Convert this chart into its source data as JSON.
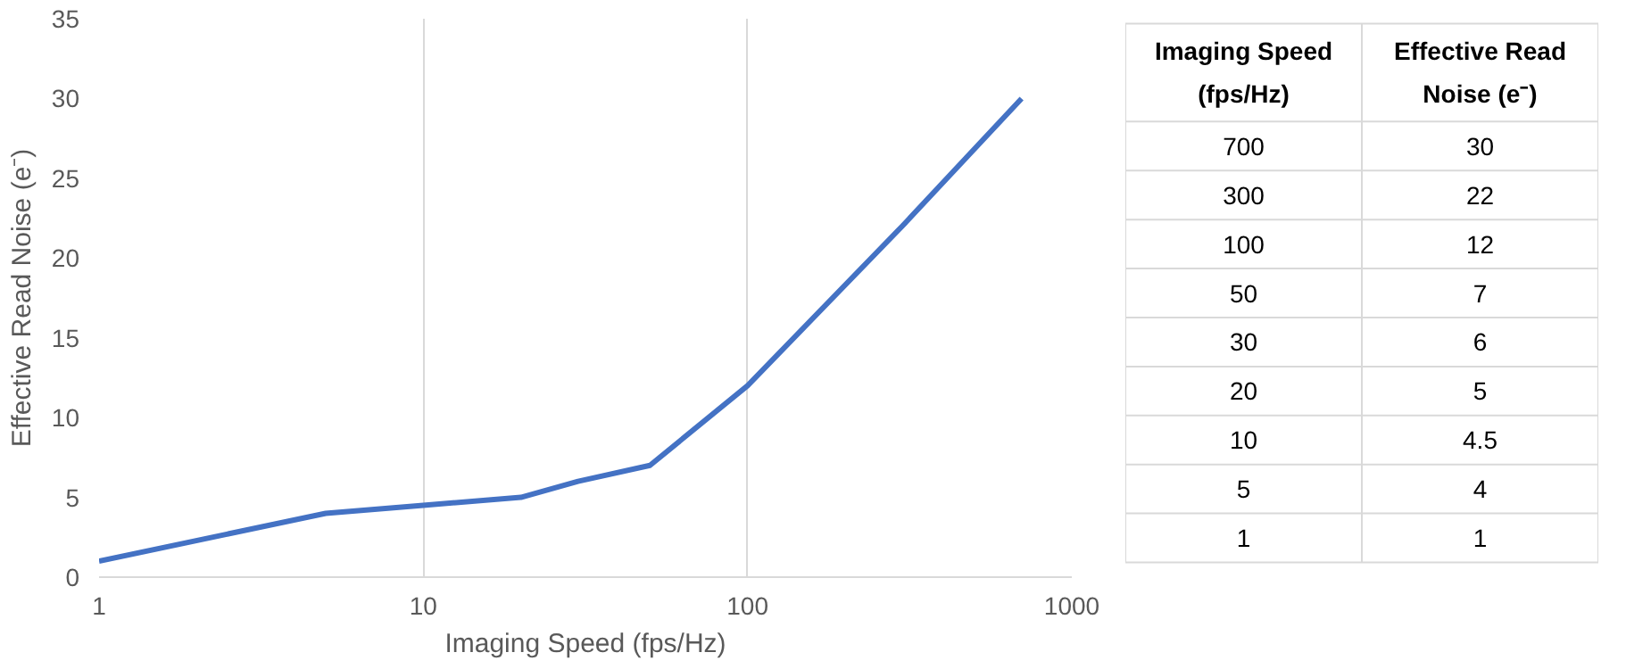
{
  "chart_data": [
    {
      "type": "line",
      "xlabel": "Imaging Speed (fps/Hz)",
      "ylabel": "Effective Read Noise (e⁻)",
      "x": [
        1,
        5,
        10,
        20,
        30,
        50,
        100,
        300,
        700
      ],
      "series": [
        {
          "color": "#4472c4",
          "values": [
            1,
            4,
            4.5,
            5,
            6,
            7,
            12,
            22,
            30
          ]
        }
      ],
      "log": "x",
      "xlim": [
        1,
        1000
      ],
      "xticks": [
        1,
        10,
        100,
        1000
      ],
      "ylim": [
        0,
        35
      ],
      "yticks": [
        0,
        5,
        10,
        15,
        20,
        25,
        30,
        35
      ],
      "grid": "x",
      "line_style": "solid"
    },
    {
      "type": "other",
      "xlabel": "Imaging Speed (fps/Hz)",
      "ylabel": "Effective Read Noise (e⁻)",
      "annotations": [
        "700",
        "30",
        "300",
        "22",
        "100",
        "12",
        "50",
        "7",
        "30",
        "6",
        "20",
        "5",
        "10",
        "4.5",
        "5",
        "4",
        "1",
        "1"
      ]
    }
  ]
}
